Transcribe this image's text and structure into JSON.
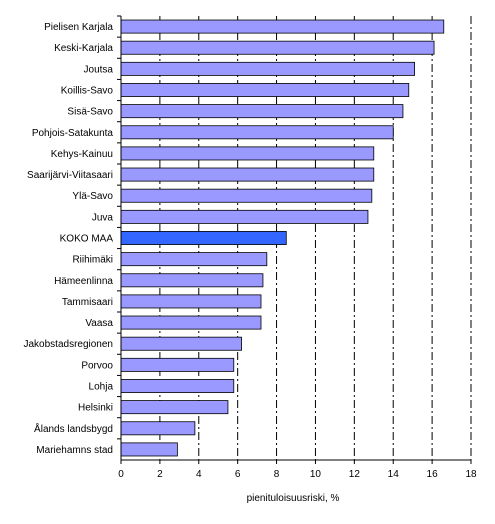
{
  "chart_data": {
    "type": "bar",
    "orientation": "horizontal",
    "categories": [
      "Pielisen Karjala",
      "Keski-Karjala",
      "Joutsa",
      "Koillis-Savo",
      "Sisä-Savo",
      "Pohjois-Satakunta",
      "Kehys-Kainuu",
      "Saarijärvi-Viitasaari",
      "Ylä-Savo",
      "Juva",
      "KOKO MAA",
      "Riihimäki",
      "Hämeenlinna",
      "Tammisaari",
      "Vaasa",
      "Jakobstadsregionen",
      "Porvoo",
      "Lohja",
      "Helsinki",
      "Ålands landsbygd",
      "Mariehamns stad"
    ],
    "values": [
      16.6,
      16.1,
      15.1,
      14.8,
      14.5,
      14.0,
      13.0,
      13.0,
      12.9,
      12.7,
      8.5,
      7.5,
      7.3,
      7.2,
      7.2,
      6.2,
      5.8,
      5.8,
      5.5,
      3.8,
      2.9
    ],
    "highlight": "KOKO MAA",
    "xlim": [
      0,
      18
    ],
    "xticks": [
      0,
      2,
      4,
      6,
      8,
      10,
      12,
      14,
      16,
      18
    ],
    "xlabel": "pienituloisuusriski, %",
    "ylabel": "",
    "title": "",
    "grid": "vertical dash-dot",
    "legend": "none",
    "colors": {
      "bar_fill": "#9999ff",
      "bar_highlight": "#3366ff",
      "bar_stroke": "#000000",
      "grid": "#000000",
      "axis": "#000000"
    }
  }
}
